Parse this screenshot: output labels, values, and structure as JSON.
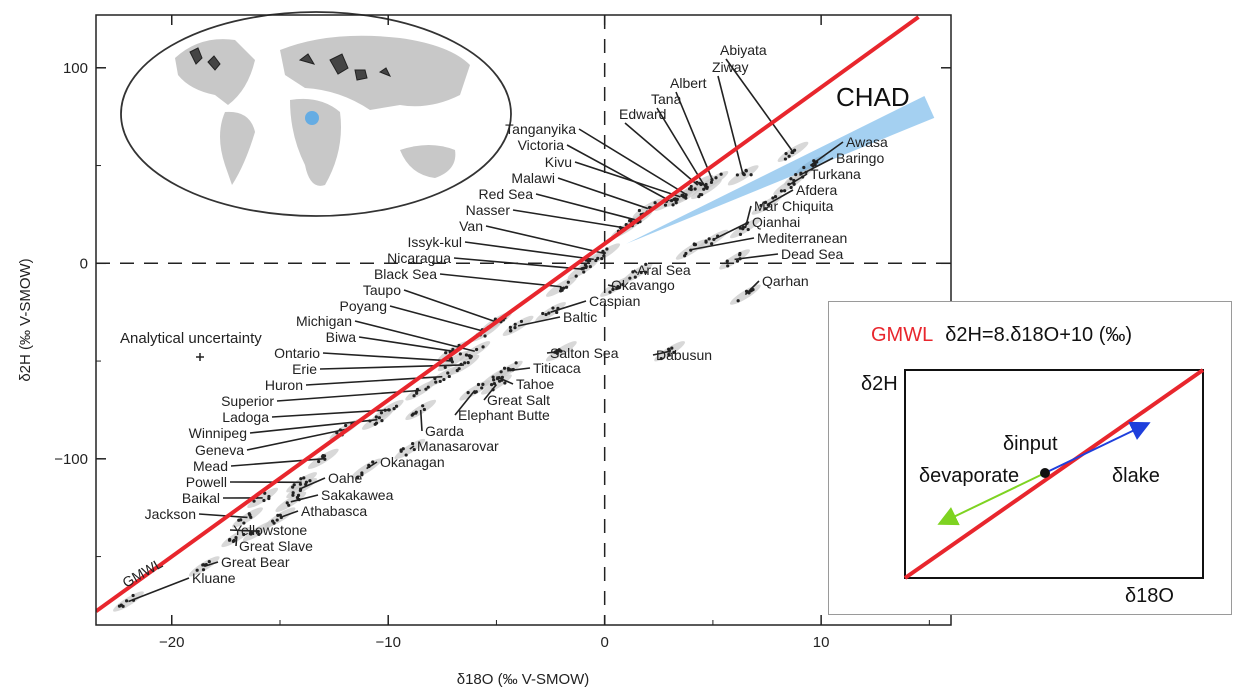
{
  "chart_data": {
    "type": "scatter",
    "xlabel": "δ18O (‰ V-SMOW)",
    "ylabel": "δ2H (‰ V-SMOW)",
    "xlim": [
      -23.5,
      16
    ],
    "ylim": [
      -185,
      127
    ],
    "xticks": [
      -20,
      -10,
      0,
      10
    ],
    "yticks": [
      100,
      0,
      -100
    ],
    "xtick_labels": [
      "−20",
      "−10",
      "0",
      "10"
    ],
    "ytick_labels": [
      "100",
      "0",
      "−100"
    ],
    "gmwl": {
      "label": "GMWL",
      "slope": 8,
      "intercept": 10,
      "x_range": [
        -23.5,
        14.5
      ]
    },
    "annotations": [
      {
        "text": "CHAD",
        "x": 12.8,
        "y": 85
      },
      {
        "text": "Analytical uncertainty",
        "x": -20.6,
        "y": -38
      }
    ],
    "highlight_band": {
      "name": "CHAD",
      "x0": 1,
      "y0": 10,
      "x1": 15,
      "y1": 80
    },
    "lakes": [
      {
        "name": "Abiyata",
        "x": 8.7,
        "y": 57
      },
      {
        "name": "Ziway",
        "x": 6.4,
        "y": 45
      },
      {
        "name": "Albert",
        "x": 5.0,
        "y": 42
      },
      {
        "name": "Tana",
        "x": 4.7,
        "y": 38
      },
      {
        "name": "Edward",
        "x": 4.3,
        "y": 40
      },
      {
        "name": "Tanganyika",
        "x": 3.8,
        "y": 35
      },
      {
        "name": "Victoria",
        "x": 3.0,
        "y": 32
      },
      {
        "name": "Kivu",
        "x": 3.5,
        "y": 34
      },
      {
        "name": "Malawi",
        "x": 2.0,
        "y": 28
      },
      {
        "name": "Red Sea",
        "x": 1.5,
        "y": 22
      },
      {
        "name": "Nasser",
        "x": 1.0,
        "y": 18
      },
      {
        "name": "Van",
        "x": 0.0,
        "y": 5
      },
      {
        "name": "Issyk-kul",
        "x": -0.5,
        "y": 2
      },
      {
        "name": "Nicaragua",
        "x": -1.0,
        "y": -3
      },
      {
        "name": "Black Sea",
        "x": -2.0,
        "y": -12
      },
      {
        "name": "Taupo",
        "x": -5.0,
        "y": -30
      },
      {
        "name": "Poyang",
        "x": -5.5,
        "y": -35
      },
      {
        "name": "Michigan",
        "x": -6.0,
        "y": -45
      },
      {
        "name": "Biwa",
        "x": -7.0,
        "y": -45
      },
      {
        "name": "Ontario",
        "x": -7.0,
        "y": -50
      },
      {
        "name": "Erie",
        "x": -6.5,
        "y": -52
      },
      {
        "name": "Huron",
        "x": -7.5,
        "y": -58
      },
      {
        "name": "Superior",
        "x": -8.5,
        "y": -65
      },
      {
        "name": "Ladoga",
        "x": -10.0,
        "y": -75
      },
      {
        "name": "Winnipeg",
        "x": -10.5,
        "y": -80
      },
      {
        "name": "Geneva",
        "x": -12.0,
        "y": -85
      },
      {
        "name": "Mead",
        "x": -13.0,
        "y": -100
      },
      {
        "name": "Powell",
        "x": -14.0,
        "y": -112
      },
      {
        "name": "Baikal",
        "x": -15.8,
        "y": -120
      },
      {
        "name": "Jackson",
        "x": -16.5,
        "y": -130
      },
      {
        "name": "Yellowstone",
        "x": -16.0,
        "y": -137
      },
      {
        "name": "Great Slave",
        "x": -17.0,
        "y": -140
      },
      {
        "name": "Great Bear",
        "x": -18.5,
        "y": -155
      },
      {
        "name": "Kluane",
        "x": -22.0,
        "y": -173
      },
      {
        "name": "Oahe",
        "x": -14.0,
        "y": -115
      },
      {
        "name": "Sakakawea",
        "x": -14.5,
        "y": -122
      },
      {
        "name": "Athabasca",
        "x": -15.0,
        "y": -130
      },
      {
        "name": "Okanagan",
        "x": -11.0,
        "y": -105
      },
      {
        "name": "Manasarovar",
        "x": -9.0,
        "y": -95
      },
      {
        "name": "Garda",
        "x": -8.5,
        "y": -75
      },
      {
        "name": "Elephant Butte",
        "x": -6.0,
        "y": -65
      },
      {
        "name": "Great Salt",
        "x": -5.0,
        "y": -62
      },
      {
        "name": "Tahoe",
        "x": -5.0,
        "y": -58
      },
      {
        "name": "Titicaca",
        "x": -4.5,
        "y": -55
      },
      {
        "name": "Salton Sea",
        "x": -2.0,
        "y": -45
      },
      {
        "name": "Baltic",
        "x": -4.0,
        "y": -32
      },
      {
        "name": "Caspian",
        "x": -2.5,
        "y": -25
      },
      {
        "name": "Okavango",
        "x": 0.5,
        "y": -12
      },
      {
        "name": "Aral Sea",
        "x": 1.5,
        "y": -5
      },
      {
        "name": "Dead Sea",
        "x": 6.0,
        "y": 2
      },
      {
        "name": "Mediterranean",
        "x": 4.0,
        "y": 7
      },
      {
        "name": "Qianhai",
        "x": 5.0,
        "y": 12
      },
      {
        "name": "Mar Chiquita",
        "x": 6.5,
        "y": 18
      },
      {
        "name": "Afdera",
        "x": 7.5,
        "y": 30
      },
      {
        "name": "Turkana",
        "x": 8.5,
        "y": 40
      },
      {
        "name": "Baringo",
        "x": 9.0,
        "y": 45
      },
      {
        "name": "Awasa",
        "x": 9.5,
        "y": 50
      },
      {
        "name": "Qarhan",
        "x": 6.5,
        "y": -16
      },
      {
        "name": "Dabusun",
        "x": 3.0,
        "y": -45
      }
    ]
  },
  "inset": {
    "title_gmwl": "GMWL",
    "title_eq": "δ2H=8.δ18O+10 (‰)",
    "y_axis": "δ2H",
    "x_axis": "δ18O",
    "label_input": "δinput",
    "label_evaporate": "δevaporate",
    "label_lake": "δlake",
    "colors": {
      "line": "#e8262d",
      "lake": "#1f3fdc",
      "evaporate": "#7ed321"
    }
  },
  "colors": {
    "gmwl": "#e8262d",
    "band": "#5aa9e6",
    "grey_band": "#c8c8c8",
    "points": "#222222"
  }
}
